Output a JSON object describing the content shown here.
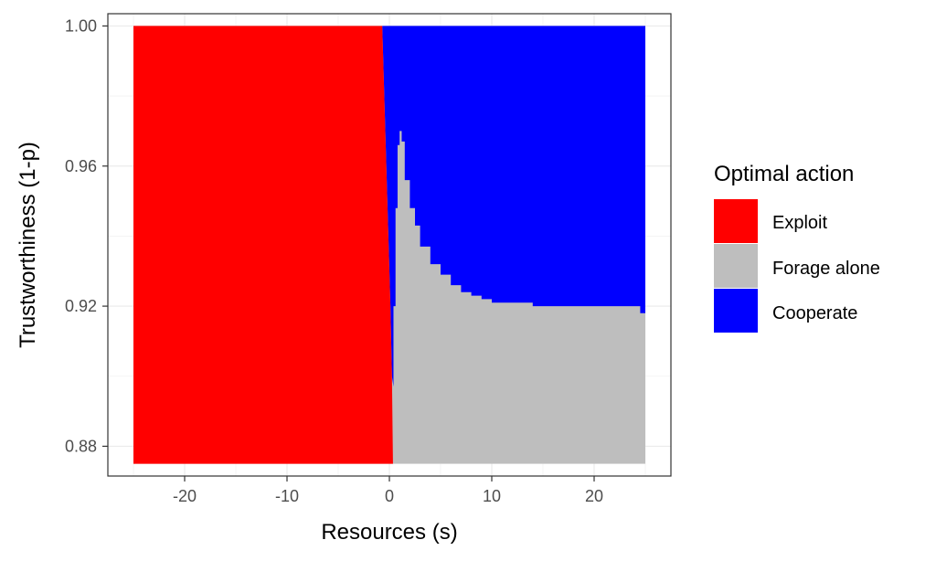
{
  "chart_data": {
    "type": "heatmap",
    "xlabel": "Resources (s)",
    "ylabel": "Trustworthiness (1-p)",
    "xlim": [
      -27.5,
      27.5
    ],
    "ylim": [
      0.8715,
      1.0035
    ],
    "x_range": [
      -25,
      25
    ],
    "y_range": [
      0.875,
      1.0
    ],
    "x_ticks": [
      -20,
      -10,
      0,
      10,
      20
    ],
    "x_tick_labels": [
      "-20",
      "-10",
      "0",
      "10",
      "20"
    ],
    "y_ticks": [
      0.88,
      0.92,
      0.96,
      1.0
    ],
    "y_tick_labels": [
      "0.88",
      "0.92",
      "0.96",
      "1.00"
    ],
    "grid": true,
    "legend": {
      "title": "Optimal action",
      "position": "right",
      "entries": [
        {
          "label": "Exploit",
          "color": "#ff0000"
        },
        {
          "label": "Forage alone",
          "color": "#bebebe"
        },
        {
          "label": "Cooperate",
          "color": "#0000ff"
        }
      ]
    },
    "regions": [
      {
        "action": "Exploit",
        "boundary_desc": "region to the left of the exploit boundary",
        "exploit_boundary": [
          {
            "y": 1.0,
            "x": -0.7
          },
          {
            "y": 0.97,
            "x": -0.4
          },
          {
            "y": 0.94,
            "x": -0.1
          },
          {
            "y": 0.92,
            "x": 0.1
          },
          {
            "y": 0.9,
            "x": 0.25
          },
          {
            "y": 0.875,
            "x": 0.35
          }
        ]
      },
      {
        "action": "Cooperate",
        "upper_region_boundary": [
          {
            "x": 0.4,
            "y": 0.897
          },
          {
            "x": 0.6,
            "y": 0.92
          },
          {
            "x": 0.8,
            "y": 0.948
          },
          {
            "x": 1.0,
            "y": 0.966
          },
          {
            "x": 1.2,
            "y": 0.97
          },
          {
            "x": 1.5,
            "y": 0.967
          },
          {
            "x": 2.0,
            "y": 0.956
          },
          {
            "x": 2.5,
            "y": 0.948
          },
          {
            "x": 3.0,
            "y": 0.943
          },
          {
            "x": 4.0,
            "y": 0.937
          },
          {
            "x": 5.0,
            "y": 0.932
          },
          {
            "x": 6.0,
            "y": 0.929
          },
          {
            "x": 7.0,
            "y": 0.926
          },
          {
            "x": 8.0,
            "y": 0.924
          },
          {
            "x": 9.0,
            "y": 0.923
          },
          {
            "x": 10.0,
            "y": 0.922
          },
          {
            "x": 12.0,
            "y": 0.921
          },
          {
            "x": 14.0,
            "y": 0.921
          },
          {
            "x": 16.0,
            "y": 0.92
          },
          {
            "x": 20.0,
            "y": 0.92
          },
          {
            "x": 24.5,
            "y": 0.92
          },
          {
            "x": 25.0,
            "y": 0.918
          }
        ]
      },
      {
        "action": "Forage alone",
        "boundary_desc": "between the exploit boundary and the cooperate boundary"
      }
    ]
  }
}
